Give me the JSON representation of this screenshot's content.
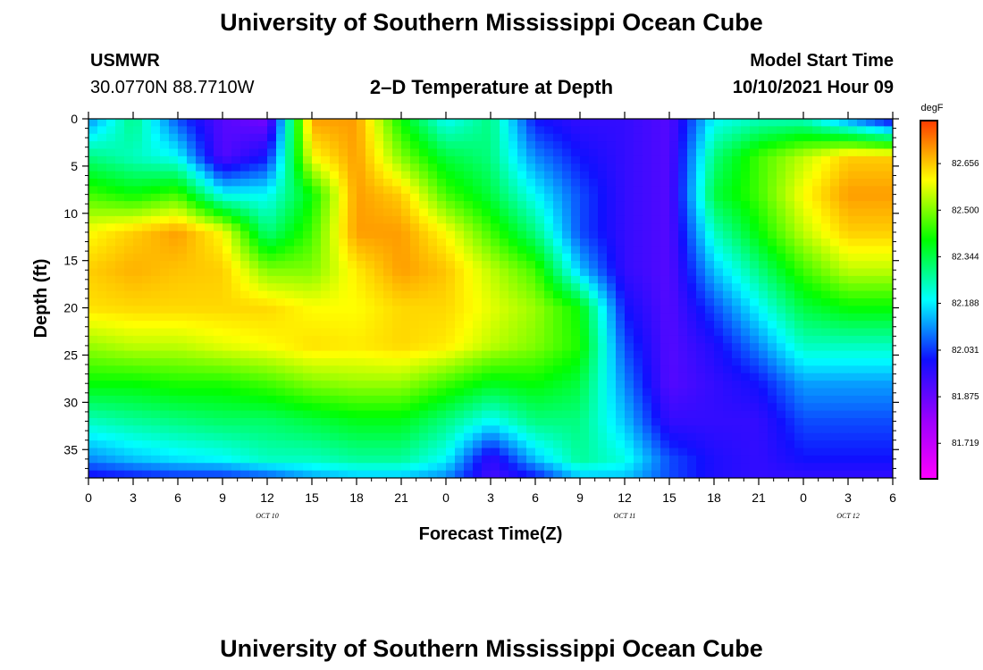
{
  "header": {
    "title_top": "University of Southern Mississippi Ocean Cube",
    "station": "USMWR",
    "coords": "30.0770N  88.7710W",
    "plot_title": "2–D Temperature at Depth",
    "model_label": "Model Start Time",
    "model_time": "10/10/2021 Hour 09",
    "title_bottom": "University of Southern Mississippi Ocean Cube"
  },
  "chart_data": {
    "type": "heatmap",
    "title": "2–D Temperature at Depth",
    "xlabel": "Forecast Time(Z)",
    "ylabel": "Depth (ft)",
    "xlim": [
      0,
      54
    ],
    "ylim": [
      0,
      38
    ],
    "y_reversed": true,
    "x_ticks": [
      0,
      3,
      6,
      9,
      12,
      15,
      18,
      21,
      24,
      27,
      30,
      33,
      36,
      39,
      42,
      45,
      48,
      51,
      54
    ],
    "x_tick_labels": [
      "0",
      "3",
      "6",
      "9",
      "12",
      "15",
      "18",
      "21",
      "0",
      "3",
      "6",
      "9",
      "12",
      "15",
      "18",
      "21",
      "0",
      "3",
      "6"
    ],
    "y_ticks": [
      0,
      5,
      10,
      15,
      20,
      25,
      30,
      35
    ],
    "y_tick_labels": [
      "0",
      "5",
      "10",
      "15",
      "20",
      "25",
      "30",
      "35"
    ],
    "date_labels": [
      {
        "x": 12,
        "text": "OCT 10"
      },
      {
        "x": 36,
        "text": "OCT 11"
      },
      {
        "x": 51,
        "text": "OCT 12"
      }
    ],
    "colorbar": {
      "unit": "degF",
      "ticks": [
        82.656,
        82.5,
        82.344,
        82.188,
        82.031,
        81.875,
        81.719
      ],
      "tick_labels": [
        "82.656",
        "82.500",
        "82.344",
        "82.188",
        "82.031",
        "81.875",
        "81.719"
      ],
      "range": [
        81.6,
        82.8
      ],
      "colors": [
        "#ff00ff",
        "#9900ff",
        "#1010ff",
        "#00ffff",
        "#00ff00",
        "#ffff00",
        "#ff3b00"
      ]
    },
    "depths_ft": [
      0,
      4,
      8,
      12,
      16,
      20,
      24,
      28,
      32,
      36,
      38
    ],
    "times_h": [
      0,
      3,
      6,
      9,
      12,
      15,
      18,
      21,
      24,
      27,
      30,
      33,
      36,
      39,
      42,
      45,
      48,
      51,
      54
    ],
    "temperature_degF": [
      [
        82.1,
        82.3,
        82.05,
        81.9,
        81.85,
        82.7,
        82.7,
        82.4,
        82.2,
        82.3,
        82.0,
        81.95,
        81.95,
        81.9,
        82.2,
        82.25,
        82.25,
        82.1,
        81.95
      ],
      [
        82.3,
        82.25,
        82.2,
        81.9,
        82.0,
        82.6,
        82.7,
        82.5,
        82.35,
        82.3,
        82.1,
        82.0,
        81.95,
        81.9,
        82.3,
        82.45,
        82.55,
        82.65,
        82.65
      ],
      [
        82.45,
        82.4,
        82.45,
        82.2,
        82.2,
        82.4,
        82.7,
        82.65,
        82.45,
        82.35,
        82.2,
        82.05,
        81.95,
        81.9,
        82.35,
        82.45,
        82.6,
        82.7,
        82.7
      ],
      [
        82.6,
        82.65,
        82.7,
        82.6,
        82.3,
        82.45,
        82.7,
        82.7,
        82.6,
        82.45,
        82.3,
        82.05,
        81.95,
        81.9,
        82.25,
        82.4,
        82.55,
        82.65,
        82.65
      ],
      [
        82.65,
        82.68,
        82.66,
        82.65,
        82.5,
        82.5,
        82.62,
        82.7,
        82.66,
        82.55,
        82.45,
        82.15,
        81.95,
        81.9,
        82.15,
        82.3,
        82.45,
        82.55,
        82.55
      ],
      [
        82.63,
        82.64,
        82.64,
        82.64,
        82.64,
        82.6,
        82.6,
        82.64,
        82.64,
        82.58,
        82.52,
        82.4,
        82.0,
        81.9,
        82.05,
        82.2,
        82.35,
        82.4,
        82.4
      ],
      [
        82.52,
        82.55,
        82.55,
        82.58,
        82.6,
        82.63,
        82.62,
        82.64,
        82.62,
        82.55,
        82.5,
        82.42,
        82.05,
        81.9,
        81.98,
        82.1,
        82.25,
        82.25,
        82.25
      ],
      [
        82.4,
        82.4,
        82.42,
        82.42,
        82.45,
        82.5,
        82.52,
        82.52,
        82.45,
        82.38,
        82.4,
        82.35,
        82.1,
        81.9,
        81.95,
        82.0,
        82.12,
        82.12,
        82.12
      ],
      [
        82.25,
        82.28,
        82.3,
        82.32,
        82.32,
        82.35,
        82.38,
        82.38,
        82.3,
        82.2,
        82.3,
        82.3,
        82.15,
        81.95,
        81.95,
        81.95,
        82.05,
        82.05,
        82.05
      ],
      [
        82.1,
        82.15,
        82.18,
        82.2,
        82.25,
        82.25,
        82.28,
        82.28,
        82.2,
        81.95,
        82.15,
        82.28,
        82.22,
        82.05,
        81.98,
        81.95,
        82.0,
        82.0,
        82.0
      ],
      [
        81.98,
        82.0,
        82.02,
        82.02,
        82.05,
        82.12,
        82.15,
        82.15,
        82.1,
        81.92,
        82.0,
        82.15,
        82.15,
        82.05,
        81.98,
        81.95,
        81.95,
        81.95,
        81.95
      ]
    ]
  }
}
